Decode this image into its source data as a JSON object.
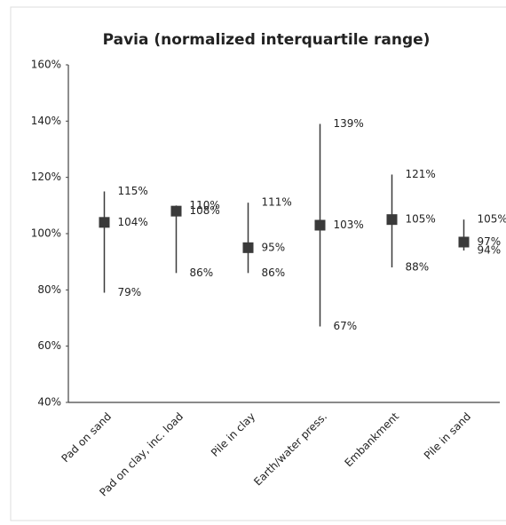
{
  "chart_data": {
    "type": "range",
    "title": "Pavia (normalized interquartile range)",
    "categories": [
      "Pad on sand",
      "Pad on clay, inc. load",
      "Pile in clay",
      "Earth/water press.",
      "Embankment",
      "Pile in sand"
    ],
    "values": [
      104,
      108,
      95,
      103,
      105,
      97
    ],
    "value_labels": [
      "104%",
      "108%",
      "95%",
      "103%",
      "105%",
      "97%"
    ],
    "high": {
      "values": [
        115,
        110,
        111,
        139,
        121,
        105
      ],
      "value_labels": [
        "115%",
        "110%",
        "111%",
        "139%",
        "121%",
        "105%"
      ]
    },
    "low": {
      "values": [
        79,
        86,
        86,
        67,
        88,
        94
      ],
      "value_labels": [
        "79%",
        "86%",
        "86%",
        "67%",
        "88%",
        "94%"
      ]
    },
    "color": "#3a3a3a",
    "ylim": [
      40,
      160
    ],
    "yticks": [
      {
        "value": 40,
        "label": "40%"
      },
      {
        "value": 60,
        "label": "60%"
      },
      {
        "value": 80,
        "label": "80%"
      },
      {
        "value": 100,
        "label": "100%"
      },
      {
        "value": 120,
        "label": "120%"
      },
      {
        "value": 140,
        "label": "140%"
      },
      {
        "value": 160,
        "label": "160%"
      }
    ]
  }
}
